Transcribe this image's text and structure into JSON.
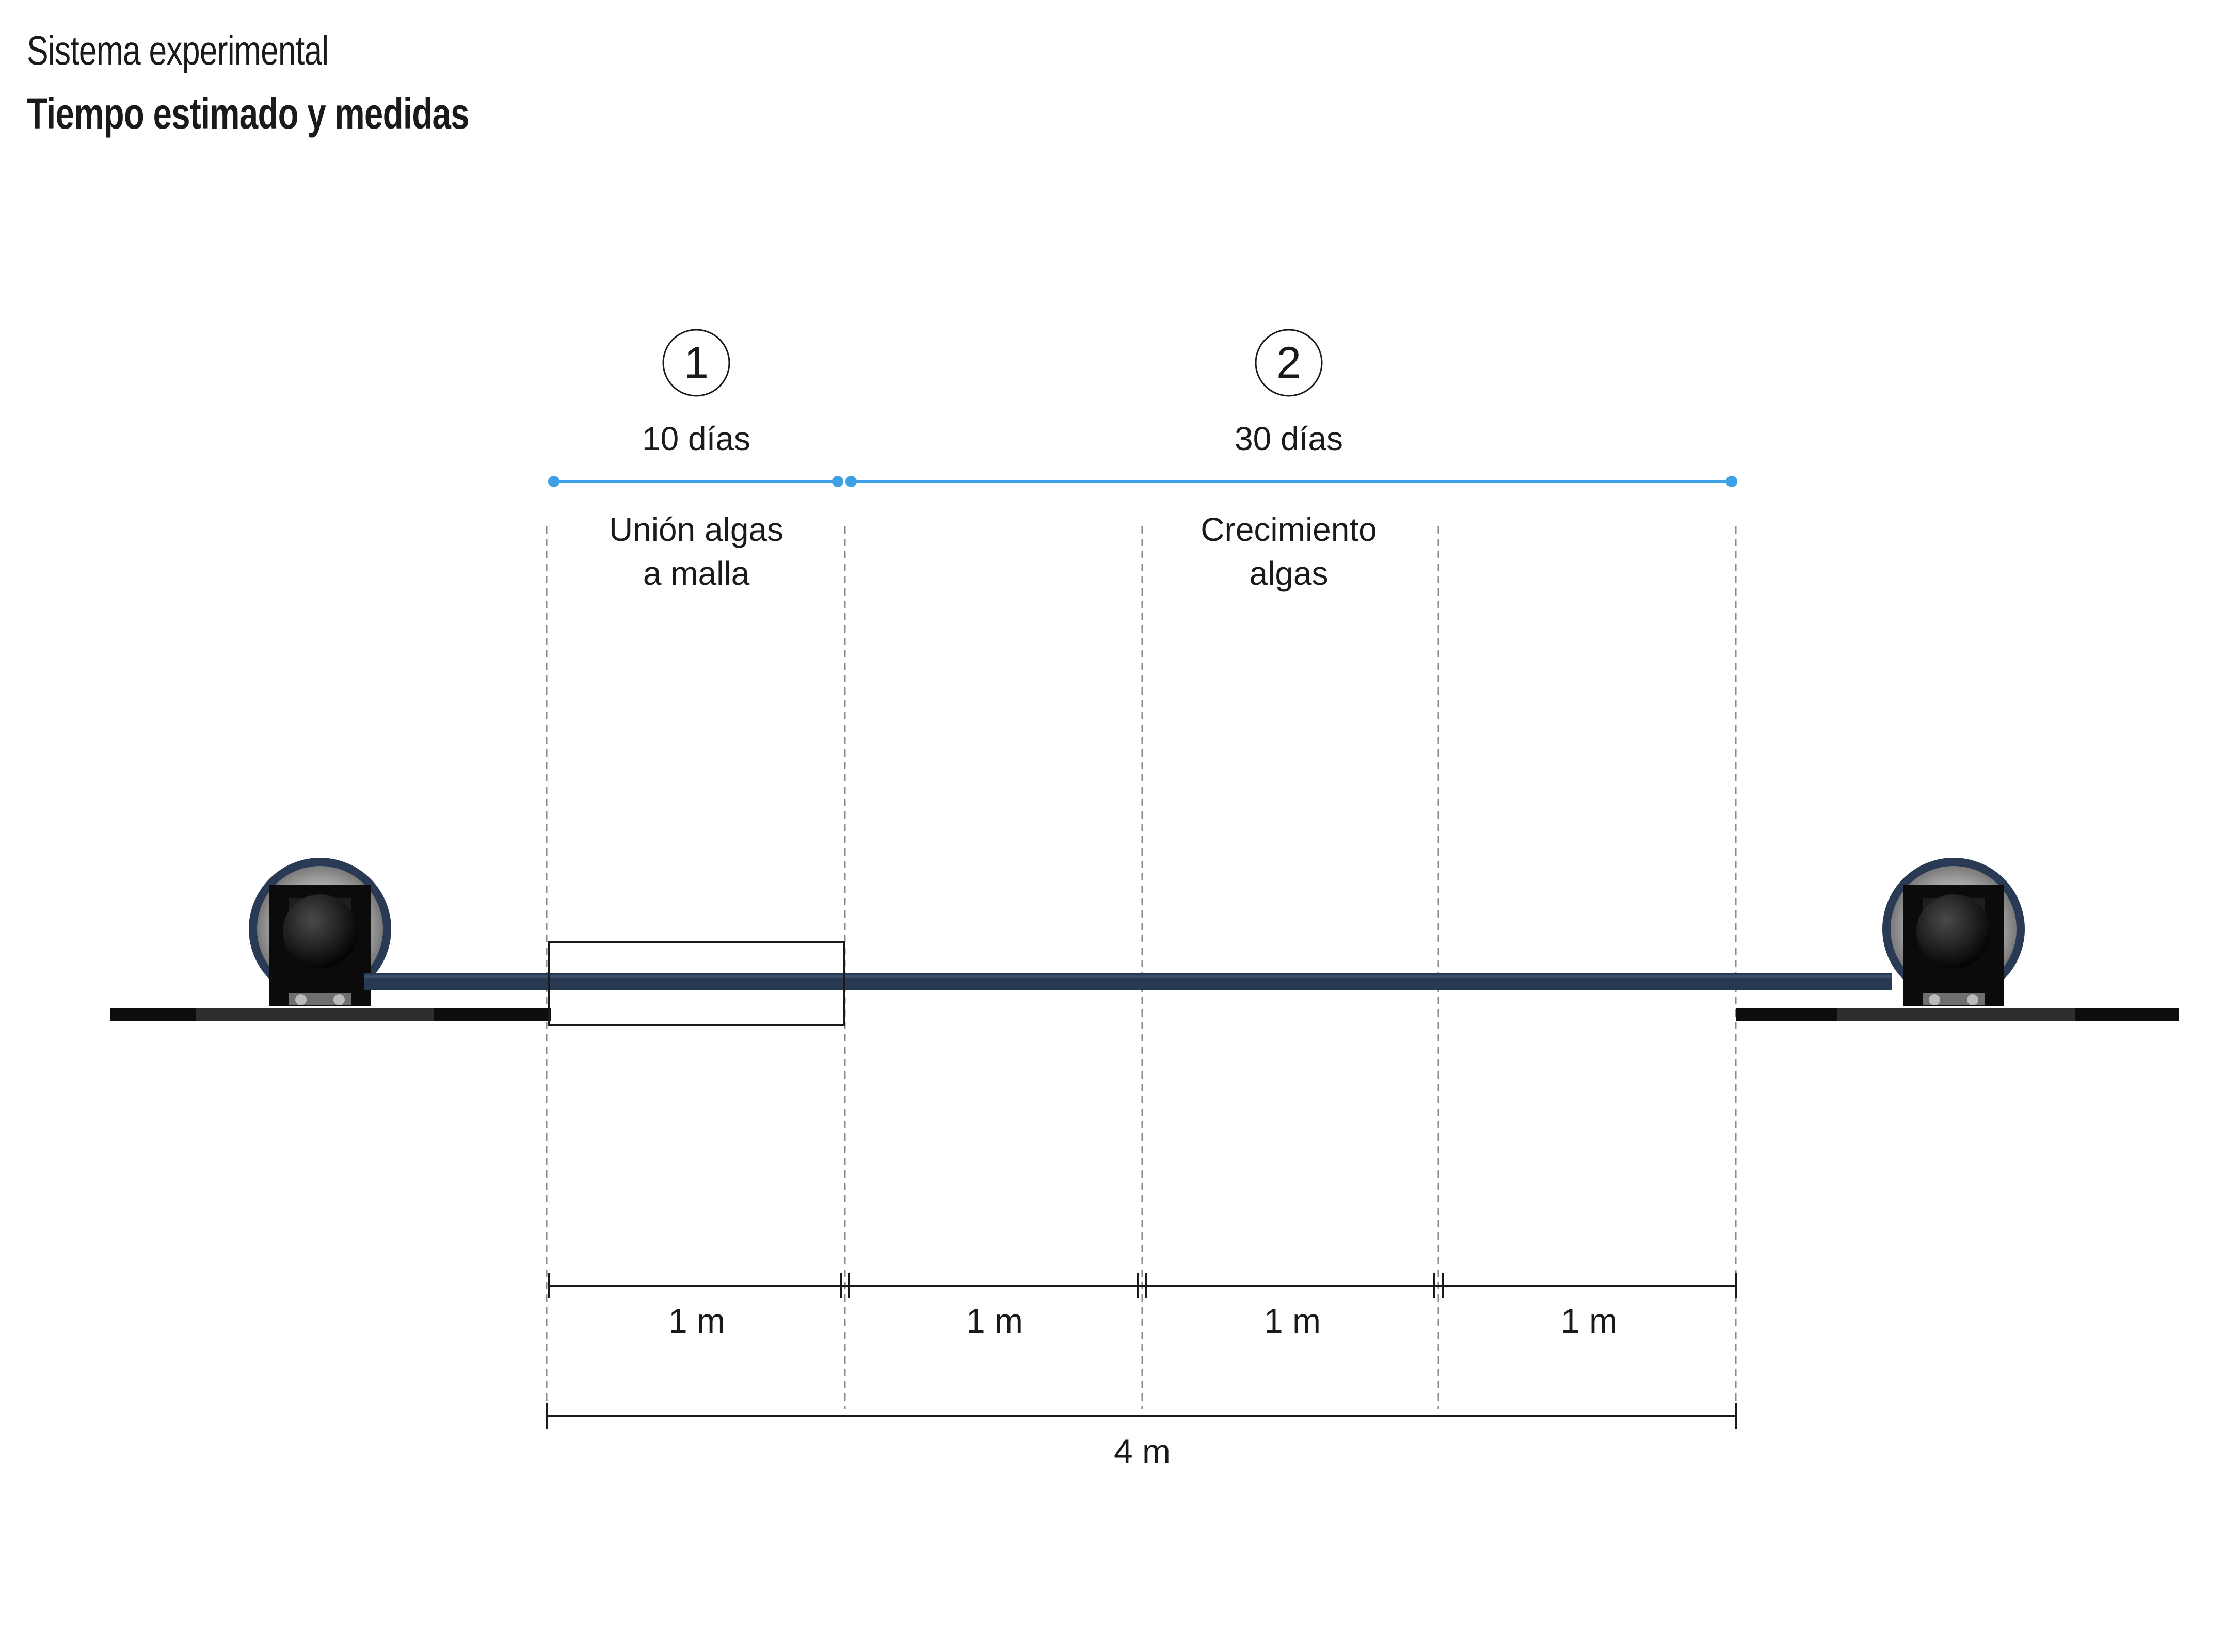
{
  "header": {
    "subtitle": "Sistema experimental",
    "title": "Tiempo estimado y medidas"
  },
  "stages": [
    {
      "number": "1",
      "duration": "10 días",
      "label_line1": "Unión algas",
      "label_line2": "a malla"
    },
    {
      "number": "2",
      "duration": "30 días",
      "label_line1": "Crecimiento",
      "label_line2": "algas"
    }
  ],
  "segments": [
    "1 m",
    "1 m",
    "1 m",
    "1 m"
  ],
  "total": "4 m",
  "colors": {
    "timeline": "#3fa0e6",
    "rope": "#283a52",
    "line": "#1a1a1a"
  }
}
